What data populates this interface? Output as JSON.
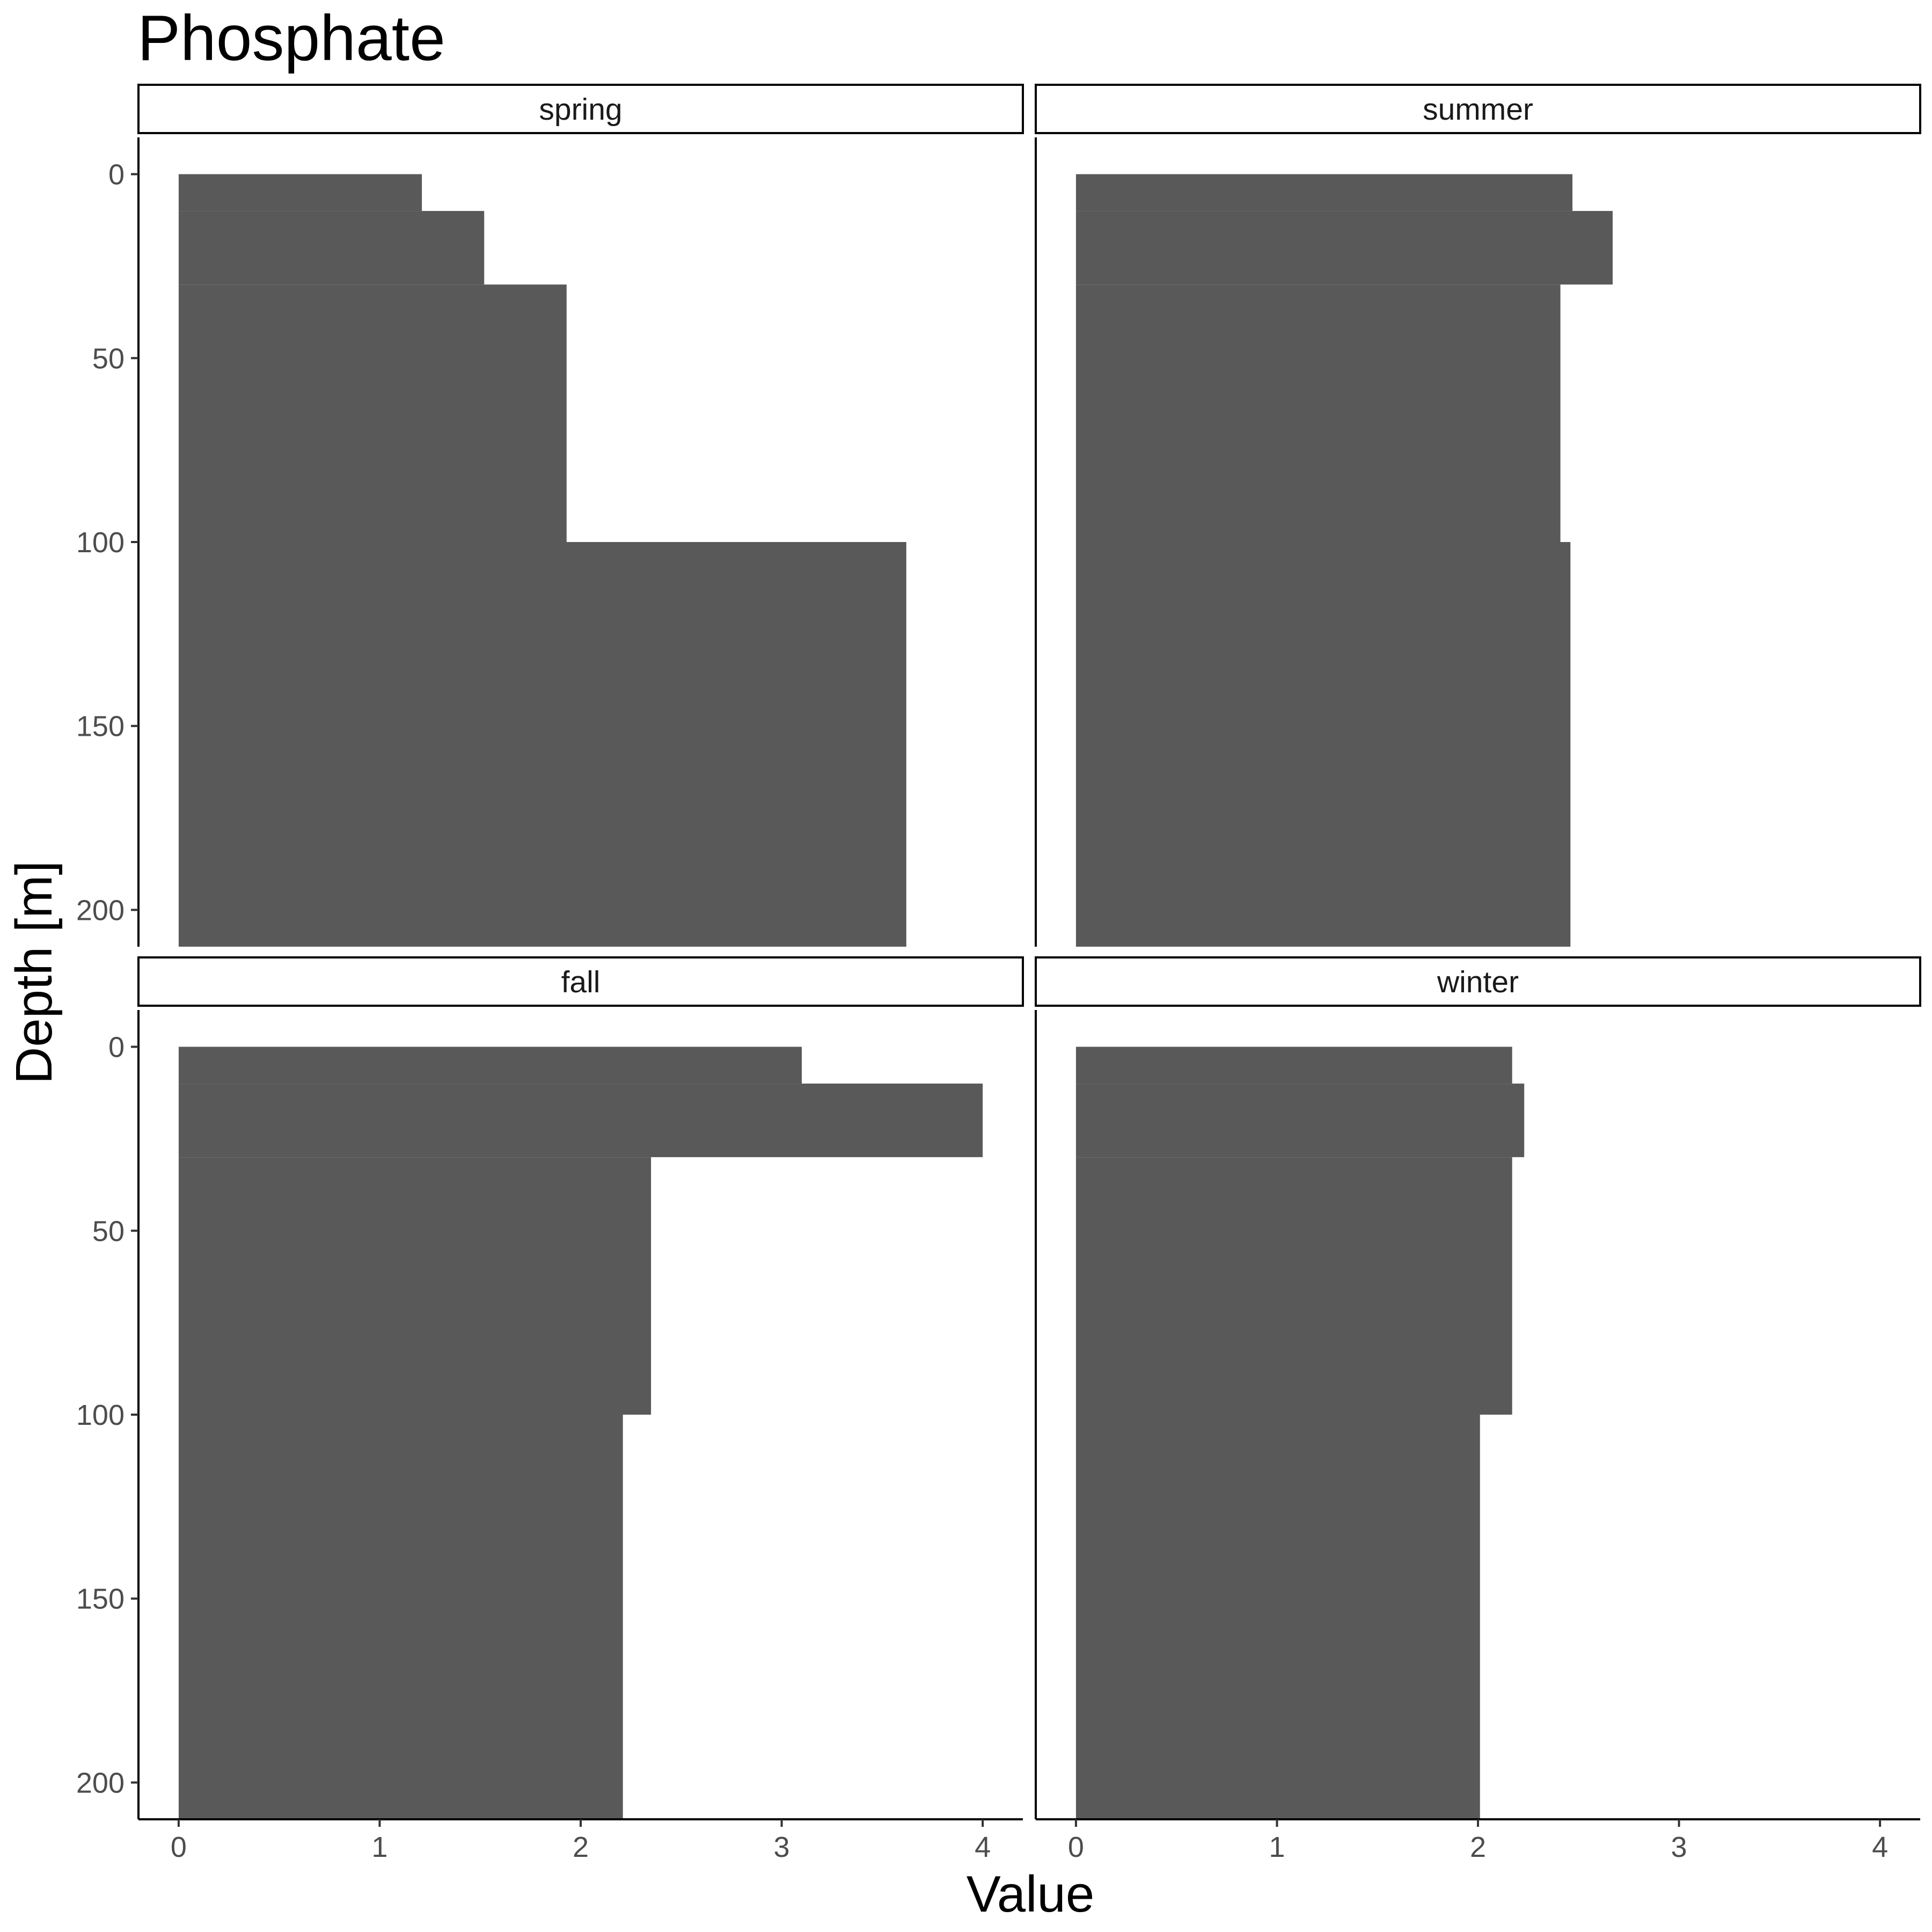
{
  "chart_data": {
    "type": "bar",
    "title": "Phosphate",
    "xlabel": "Value",
    "ylabel": "Depth [m]",
    "xlim": [
      -0.2,
      4.2
    ],
    "ylim": [
      210,
      -10
    ],
    "x_ticks": [
      0,
      1,
      2,
      3,
      4
    ],
    "y_ticks": [
      0,
      50,
      100,
      150,
      200
    ],
    "bar_color": "#595959",
    "facets": [
      {
        "name": "spring",
        "bars": [
          {
            "depth_top": 0,
            "depth_bottom": 10,
            "value": 1.21
          },
          {
            "depth_top": 10,
            "depth_bottom": 30,
            "value": 1.52
          },
          {
            "depth_top": 30,
            "depth_bottom": 100,
            "value": 1.93
          },
          {
            "depth_top": 100,
            "depth_bottom": 210,
            "value": 3.62
          }
        ]
      },
      {
        "name": "summer",
        "bars": [
          {
            "depth_top": 0,
            "depth_bottom": 10,
            "value": 2.47
          },
          {
            "depth_top": 10,
            "depth_bottom": 30,
            "value": 2.67
          },
          {
            "depth_top": 30,
            "depth_bottom": 100,
            "value": 2.41
          },
          {
            "depth_top": 100,
            "depth_bottom": 210,
            "value": 2.46
          }
        ]
      },
      {
        "name": "fall",
        "bars": [
          {
            "depth_top": 0,
            "depth_bottom": 10,
            "value": 3.1
          },
          {
            "depth_top": 10,
            "depth_bottom": 30,
            "value": 4.0
          },
          {
            "depth_top": 30,
            "depth_bottom": 100,
            "value": 2.35
          },
          {
            "depth_top": 100,
            "depth_bottom": 210,
            "value": 2.21
          }
        ]
      },
      {
        "name": "winter",
        "bars": [
          {
            "depth_top": 0,
            "depth_bottom": 10,
            "value": 2.17
          },
          {
            "depth_top": 10,
            "depth_bottom": 30,
            "value": 2.23
          },
          {
            "depth_top": 30,
            "depth_bottom": 100,
            "value": 2.17
          },
          {
            "depth_top": 100,
            "depth_bottom": 210,
            "value": 2.01
          }
        ]
      }
    ]
  }
}
